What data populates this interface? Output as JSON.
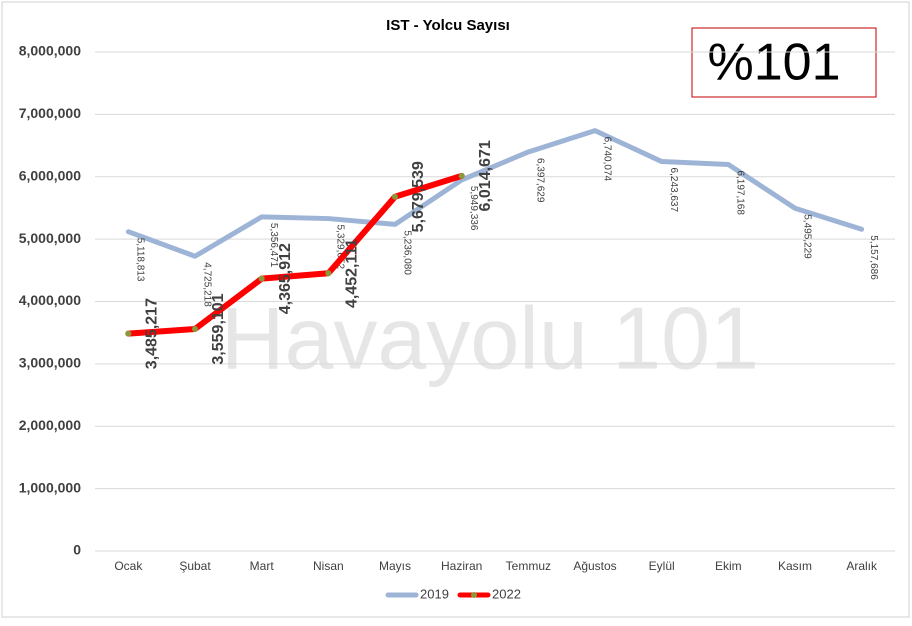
{
  "chart_data": {
    "type": "line",
    "title": "IST - Yolcu Sayısı",
    "annotations": [
      "%101",
      "Havayolu 101"
    ],
    "categories": [
      "Ocak",
      "Şubat",
      "Mart",
      "Nisan",
      "Mayıs",
      "Haziran",
      "Temmuz",
      "Ağustos",
      "Eylül",
      "Ekim",
      "Kasım",
      "Aralık"
    ],
    "series": [
      {
        "name": "2019",
        "color": "#9db4d6",
        "values": [
          5118813,
          4725218,
          5356471,
          5329652,
          5236080,
          5949336,
          6397629,
          6740074,
          6243637,
          6197168,
          5495229,
          5157686
        ],
        "value_labels": [
          "5,118,813",
          "4,725,218",
          "5,356,471",
          "5,329,652",
          "5,236,080",
          "5,949,336",
          "6,397,629",
          "6,740,074",
          "6,243,637",
          "6,197,168",
          "5,495,229",
          "5,157,686"
        ]
      },
      {
        "name": "2022",
        "color": "#ff0000",
        "marker_color": "#8a9a3a",
        "values": [
          3485217,
          3559101,
          4365912,
          4452111,
          5679539,
          6014671,
          null,
          null,
          null,
          null,
          null,
          null
        ],
        "value_labels": [
          "3,485,217",
          "3,559,101",
          "4,365,912",
          "4,452,111",
          "5,679,539",
          "6,014,671",
          null,
          null,
          null,
          null,
          null,
          null
        ]
      }
    ],
    "ylim": [
      0,
      8000000
    ],
    "yticks": [
      0,
      {
        "value": 1000000,
        "label": "1,000,000"
      },
      {
        "value": 2000000,
        "label": "2,000,000"
      },
      {
        "value": 3000000,
        "label": "3,000,000"
      },
      {
        "value": 4000000,
        "label": "4,000,000"
      },
      {
        "value": 5000000,
        "label": "5,000,000"
      },
      {
        "value": 6000000,
        "label": "6,000,000"
      },
      {
        "value": 7000000,
        "label": "7,000,000"
      },
      {
        "value": 8000000,
        "label": "8,000,000"
      }
    ],
    "grid": true,
    "legend": "bottom"
  }
}
